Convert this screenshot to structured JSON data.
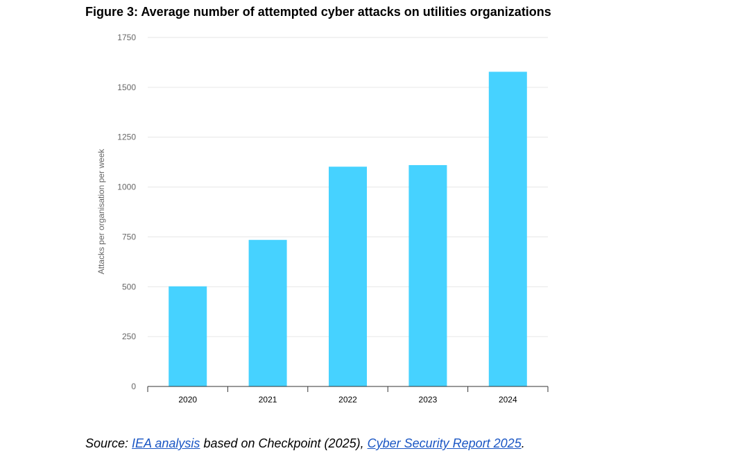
{
  "chart_data": {
    "type": "bar",
    "title": "Figure 3: Average number of attempted cyber attacks on utilities organizations",
    "xlabel": "",
    "ylabel": "Attacks per organisation per week",
    "categories": [
      "2020",
      "2021",
      "2022",
      "2023",
      "2024"
    ],
    "values": [
      502,
      735,
      1102,
      1110,
      1578
    ],
    "ylim": [
      0,
      1750
    ],
    "yticks": [
      0,
      250,
      500,
      750,
      1000,
      1250,
      1500,
      1750
    ],
    "grid": true,
    "legend": "none",
    "bar_color": "#46d2ff",
    "grid_color": "#e6e6e6",
    "axis_color": "#333333"
  },
  "source": {
    "prefix": "Source: ",
    "link1": "IEA analysis",
    "middle": " based on Checkpoint (2025), ",
    "link2": "Cyber Security Report 2025",
    "suffix": "."
  }
}
